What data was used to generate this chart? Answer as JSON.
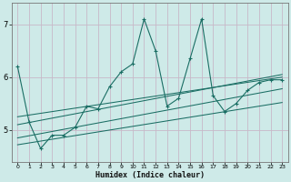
{
  "title": "",
  "xlabel": "Humidex (Indice chaleur)",
  "bg_color": "#ceeae8",
  "grid_color": "#c8b8c8",
  "line_color": "#1a6e64",
  "xlim": [
    -0.5,
    23.5
  ],
  "ylim": [
    4.4,
    7.4
  ],
  "xticks": [
    0,
    1,
    2,
    3,
    4,
    5,
    6,
    7,
    8,
    9,
    10,
    11,
    12,
    13,
    14,
    15,
    16,
    17,
    18,
    19,
    20,
    21,
    22,
    23
  ],
  "yticks": [
    5,
    6,
    7
  ],
  "main_x": [
    0,
    1,
    2,
    3,
    4,
    5,
    6,
    7,
    8,
    9,
    10,
    11,
    12,
    13,
    14,
    15,
    16,
    17,
    18,
    19,
    20,
    21,
    22,
    23
  ],
  "main_y": [
    6.2,
    5.15,
    4.65,
    4.9,
    4.9,
    5.05,
    5.45,
    5.4,
    5.82,
    6.1,
    6.25,
    7.1,
    6.5,
    5.45,
    5.6,
    6.35,
    7.1,
    5.65,
    5.35,
    5.5,
    5.75,
    5.9,
    5.95,
    5.95
  ],
  "trend1_x": [
    0,
    23
  ],
  "trend1_y": [
    5.1,
    6.05
  ],
  "trend2_x": [
    0,
    23
  ],
  "trend2_y": [
    4.85,
    5.78
  ],
  "trend3_x": [
    0,
    23
  ],
  "trend3_y": [
    4.72,
    5.52
  ],
  "trend4_x": [
    0,
    23
  ],
  "trend4_y": [
    5.25,
    6.0
  ]
}
